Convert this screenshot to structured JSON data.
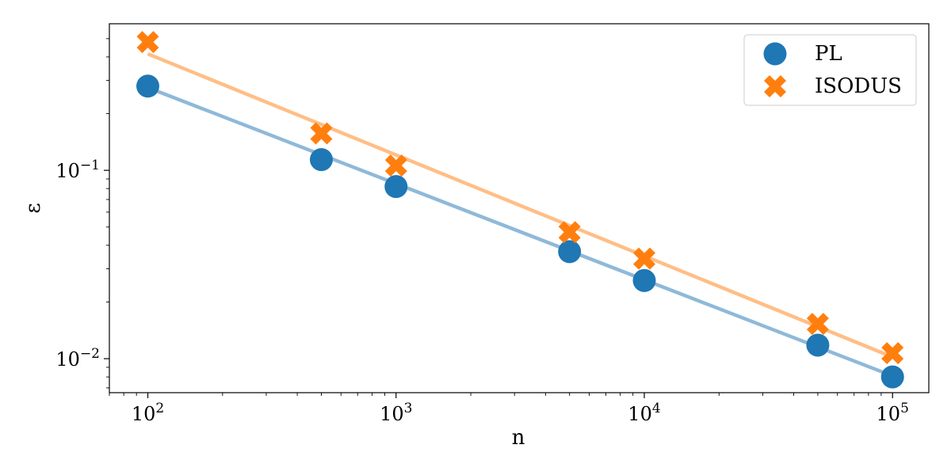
{
  "chart_data": {
    "type": "scatter",
    "xlabel": "n",
    "ylabel": "ε",
    "xscale": "log",
    "yscale": "log",
    "xlim": [
      70,
      140000
    ],
    "ylim": [
      0.0066,
      0.6
    ],
    "grid": false,
    "legend_position": "top-right",
    "x_ticks": [
      {
        "value": 100,
        "mantissa": "10",
        "exponent": "2"
      },
      {
        "value": 1000,
        "mantissa": "10",
        "exponent": "3"
      },
      {
        "value": 10000,
        "mantissa": "10",
        "exponent": "4"
      },
      {
        "value": 100000,
        "mantissa": "10",
        "exponent": "5"
      }
    ],
    "y_ticks": [
      {
        "value": 0.01,
        "mantissa": "10",
        "exponent": "−2"
      },
      {
        "value": 0.1,
        "mantissa": "10",
        "exponent": "−1"
      }
    ],
    "x": [
      100,
      500,
      1000,
      5000,
      10000,
      50000,
      100000
    ],
    "series": [
      {
        "name": "PL",
        "marker": "circle",
        "color": "#1f77b4",
        "line_color": "#8fb9d9",
        "values": [
          0.28,
          0.114,
          0.082,
          0.037,
          0.026,
          0.0118,
          0.008
        ],
        "fit": [
          [
            100,
            0.275
          ],
          [
            100000,
            0.0081
          ]
        ]
      },
      {
        "name": "ISODUS",
        "marker": "x",
        "color": "#ff7f0e",
        "line_color": "#ffbe86",
        "values": [
          0.48,
          0.157,
          0.106,
          0.047,
          0.034,
          0.0153,
          0.0107
        ],
        "fit": [
          [
            100,
            0.415
          ],
          [
            100000,
            0.0102
          ]
        ]
      }
    ]
  }
}
